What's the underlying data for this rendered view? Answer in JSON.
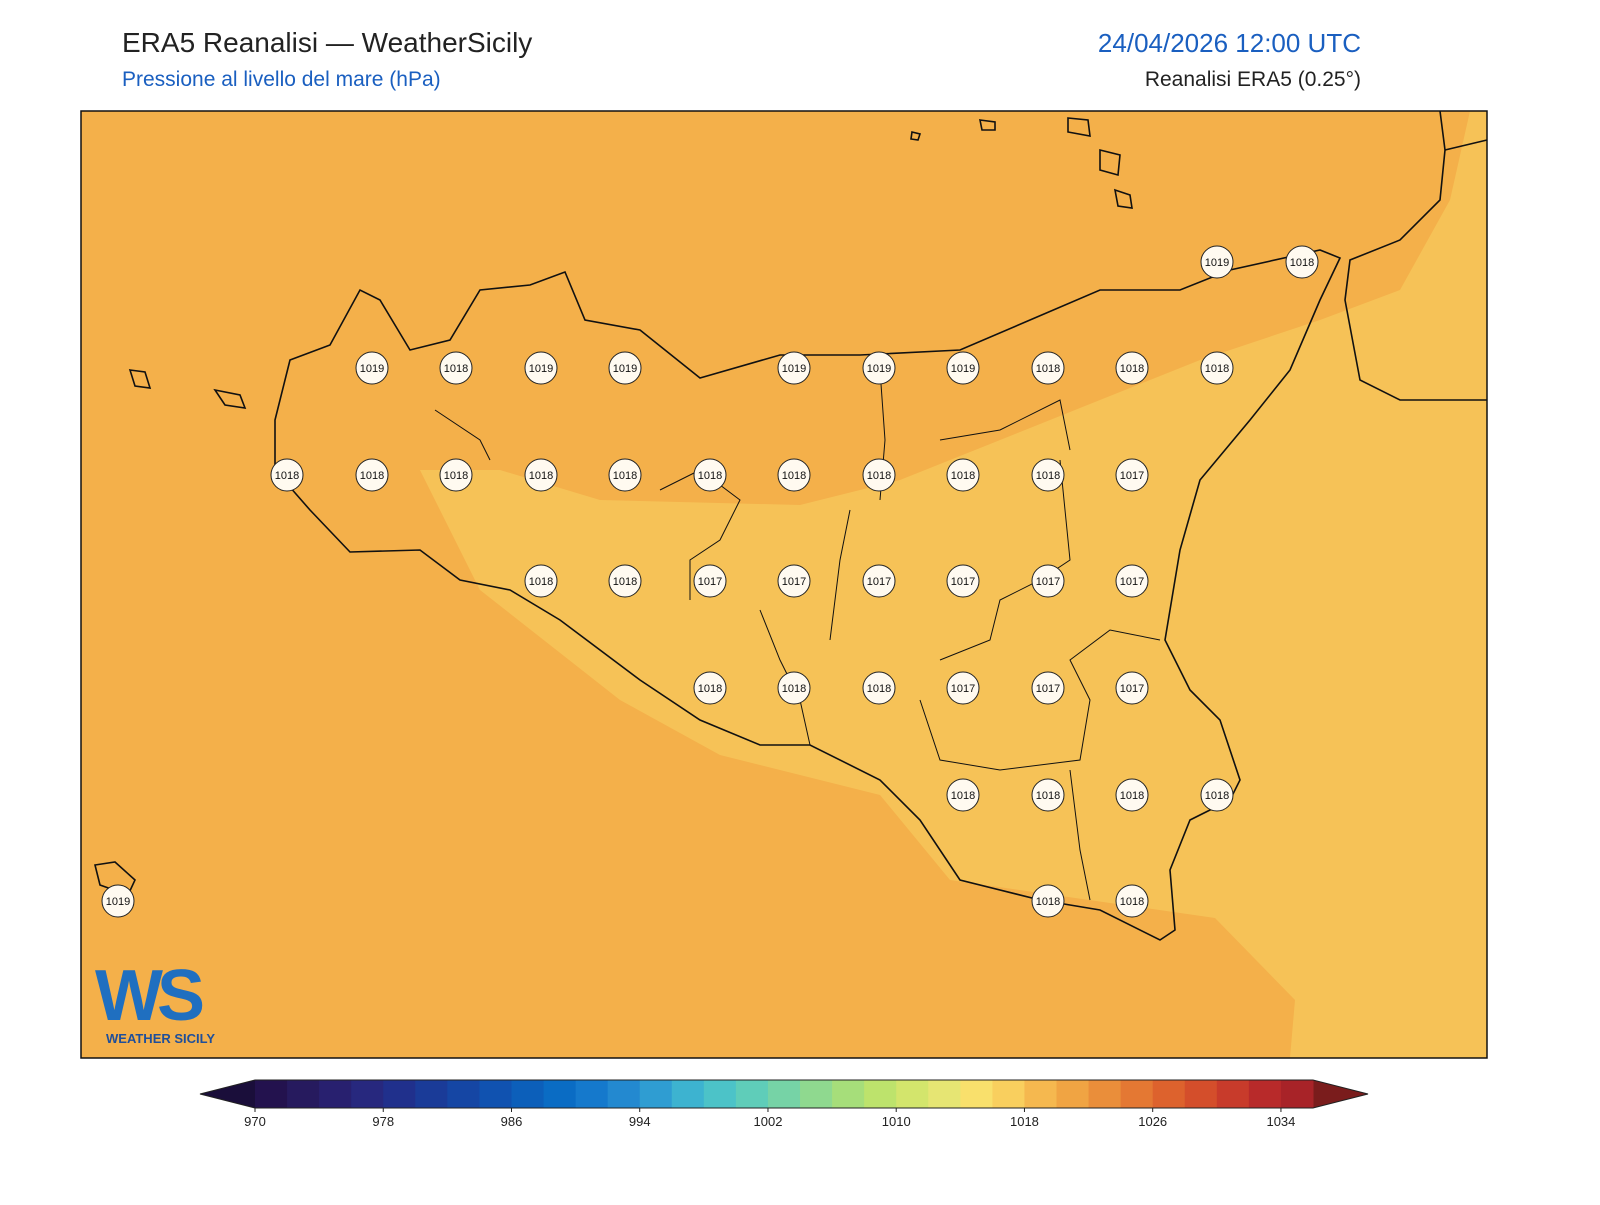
{
  "header": {
    "title": "ERA5 Reanalisi — WeatherSicily",
    "subtitle": "Pressione al livello del mare (hPa)",
    "datetime": "24/04/2026 12:00 UTC",
    "source": "Reanalisi ERA5 (0.25°)"
  },
  "stations": [
    1019,
    1018,
    1019,
    1018,
    1019,
    1019,
    1019,
    1019,
    1019,
    1018,
    1018,
    1018,
    1018,
    1018,
    1018,
    1018,
    1018,
    1018,
    1018,
    1018,
    1018,
    1018,
    1017,
    1018,
    1018,
    1017,
    1017,
    1017,
    1017,
    1017,
    1017,
    1018,
    1018,
    1018,
    1017,
    1017,
    1017,
    1018,
    1018,
    1018,
    1018,
    1019,
    1018,
    1018
  ],
  "colorbar": {
    "lim": [
      970,
      1036
    ],
    "ticks": [
      970,
      978,
      986,
      994,
      1002,
      1010,
      1018,
      1026,
      1034
    ],
    "colors": [
      "#23124e",
      "#261a5e",
      "#28206f",
      "#27287e",
      "#20308c",
      "#1a3b98",
      "#1546a4",
      "#1052b0",
      "#0c5fba",
      "#0a6cc4",
      "#1579cc",
      "#2389d0",
      "#2f9dd2",
      "#3db3d0",
      "#4cc3c8",
      "#5fcdb9",
      "#76d3a6",
      "#8fd98f",
      "#a6de7a",
      "#bde36c",
      "#d3e56c",
      "#e6e573",
      "#f9e06c",
      "#f9cf5e",
      "#f5b84f",
      "#f0a443",
      "#ea8e3a",
      "#e47833",
      "#dd622d",
      "#d44e2b",
      "#c83b2b",
      "#b82a2a",
      "#a82328"
    ],
    "under": "#1a0e3a",
    "over": "#7a1c1c"
  },
  "logo": {
    "mark": "WS",
    "text": "WEATHER SICILY"
  }
}
